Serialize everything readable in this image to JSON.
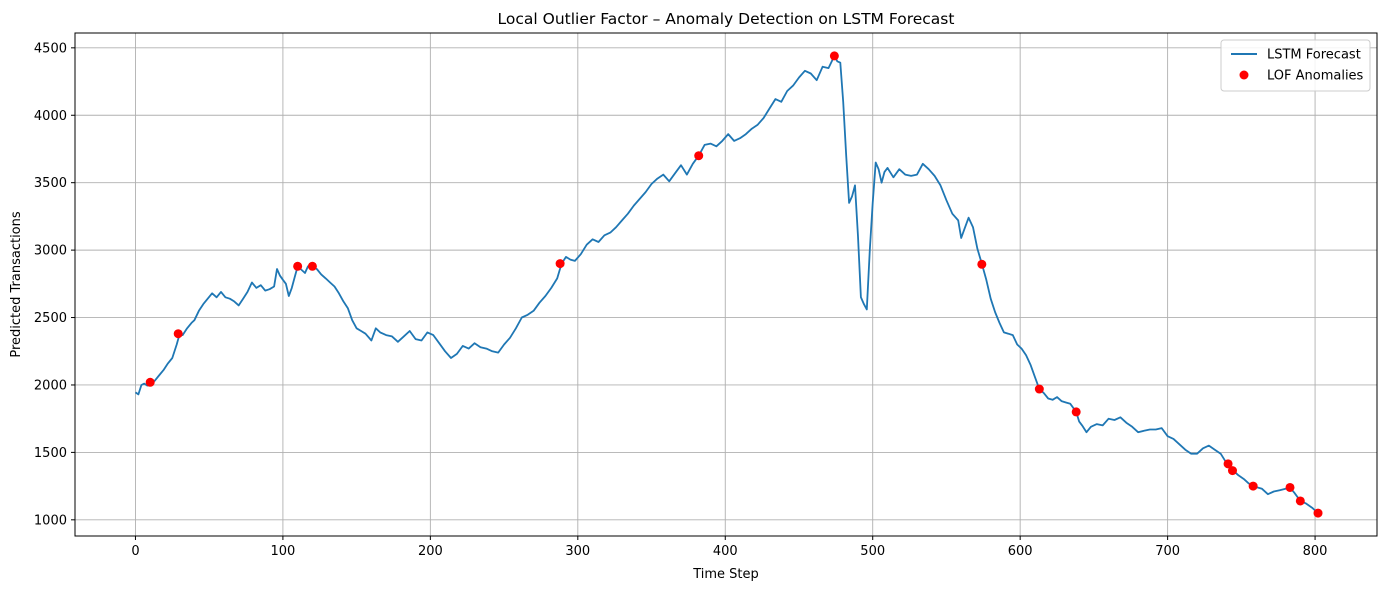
{
  "chart_data": {
    "type": "line",
    "title": "Local Outlier Factor – Anomaly Detection on LSTM Forecast",
    "xlabel": "Time Step",
    "ylabel": "Predicted Transactions",
    "xlim": [
      -41,
      842
    ],
    "ylim": [
      880,
      4610
    ],
    "xticks": [
      0,
      100,
      200,
      300,
      400,
      500,
      600,
      700,
      800
    ],
    "yticks": [
      1000,
      1500,
      2000,
      2500,
      3000,
      3500,
      4000,
      4500
    ],
    "grid": true,
    "legend_position": "top-right",
    "colors": {
      "line": "#1f77b4",
      "anomaly": "#ff0000",
      "grid": "#b0b0b0"
    },
    "series": [
      {
        "name": "LSTM Forecast",
        "kind": "line",
        "points": [
          [
            0,
            1945
          ],
          [
            2,
            1930
          ],
          [
            4,
            2000
          ],
          [
            6,
            2010
          ],
          [
            8,
            1995
          ],
          [
            10,
            2015
          ],
          [
            13,
            2030
          ],
          [
            16,
            2070
          ],
          [
            19,
            2110
          ],
          [
            22,
            2160
          ],
          [
            25,
            2200
          ],
          [
            28,
            2300
          ],
          [
            30,
            2380
          ],
          [
            32,
            2370
          ],
          [
            35,
            2420
          ],
          [
            38,
            2460
          ],
          [
            40,
            2480
          ],
          [
            43,
            2550
          ],
          [
            46,
            2600
          ],
          [
            49,
            2640
          ],
          [
            52,
            2680
          ],
          [
            55,
            2650
          ],
          [
            58,
            2690
          ],
          [
            61,
            2650
          ],
          [
            64,
            2640
          ],
          [
            67,
            2620
          ],
          [
            70,
            2590
          ],
          [
            73,
            2640
          ],
          [
            76,
            2690
          ],
          [
            79,
            2760
          ],
          [
            82,
            2720
          ],
          [
            85,
            2740
          ],
          [
            88,
            2700
          ],
          [
            91,
            2710
          ],
          [
            94,
            2730
          ],
          [
            96,
            2860
          ],
          [
            98,
            2810
          ],
          [
            100,
            2780
          ],
          [
            102,
            2750
          ],
          [
            104,
            2660
          ],
          [
            106,
            2720
          ],
          [
            108,
            2800
          ],
          [
            110,
            2880
          ],
          [
            112,
            2860
          ],
          [
            115,
            2830
          ],
          [
            117,
            2880
          ],
          [
            120,
            2880
          ],
          [
            123,
            2860
          ],
          [
            126,
            2820
          ],
          [
            129,
            2790
          ],
          [
            132,
            2760
          ],
          [
            135,
            2730
          ],
          [
            138,
            2680
          ],
          [
            141,
            2620
          ],
          [
            144,
            2570
          ],
          [
            147,
            2480
          ],
          [
            150,
            2420
          ],
          [
            153,
            2400
          ],
          [
            156,
            2380
          ],
          [
            160,
            2330
          ],
          [
            163,
            2420
          ],
          [
            166,
            2390
          ],
          [
            170,
            2370
          ],
          [
            174,
            2360
          ],
          [
            178,
            2320
          ],
          [
            182,
            2360
          ],
          [
            186,
            2400
          ],
          [
            190,
            2340
          ],
          [
            194,
            2330
          ],
          [
            198,
            2390
          ],
          [
            202,
            2370
          ],
          [
            206,
            2310
          ],
          [
            210,
            2250
          ],
          [
            214,
            2200
          ],
          [
            218,
            2230
          ],
          [
            222,
            2290
          ],
          [
            226,
            2270
          ],
          [
            230,
            2310
          ],
          [
            234,
            2280
          ],
          [
            238,
            2270
          ],
          [
            242,
            2250
          ],
          [
            246,
            2240
          ],
          [
            250,
            2300
          ],
          [
            254,
            2350
          ],
          [
            258,
            2420
          ],
          [
            262,
            2500
          ],
          [
            266,
            2520
          ],
          [
            270,
            2550
          ],
          [
            274,
            2610
          ],
          [
            278,
            2660
          ],
          [
            282,
            2720
          ],
          [
            286,
            2790
          ],
          [
            289,
            2900
          ],
          [
            292,
            2950
          ],
          [
            295,
            2930
          ],
          [
            298,
            2920
          ],
          [
            302,
            2970
          ],
          [
            306,
            3040
          ],
          [
            310,
            3080
          ],
          [
            314,
            3060
          ],
          [
            318,
            3110
          ],
          [
            322,
            3130
          ],
          [
            326,
            3170
          ],
          [
            330,
            3220
          ],
          [
            334,
            3270
          ],
          [
            338,
            3330
          ],
          [
            342,
            3380
          ],
          [
            346,
            3430
          ],
          [
            350,
            3490
          ],
          [
            354,
            3530
          ],
          [
            358,
            3560
          ],
          [
            362,
            3510
          ],
          [
            366,
            3570
          ],
          [
            370,
            3630
          ],
          [
            374,
            3560
          ],
          [
            378,
            3640
          ],
          [
            382,
            3700
          ],
          [
            386,
            3780
          ],
          [
            390,
            3790
          ],
          [
            394,
            3770
          ],
          [
            398,
            3810
          ],
          [
            402,
            3860
          ],
          [
            406,
            3810
          ],
          [
            410,
            3830
          ],
          [
            414,
            3860
          ],
          [
            418,
            3900
          ],
          [
            422,
            3930
          ],
          [
            426,
            3980
          ],
          [
            430,
            4050
          ],
          [
            434,
            4120
          ],
          [
            438,
            4100
          ],
          [
            442,
            4180
          ],
          [
            446,
            4220
          ],
          [
            450,
            4280
          ],
          [
            454,
            4330
          ],
          [
            458,
            4310
          ],
          [
            462,
            4260
          ],
          [
            466,
            4360
          ],
          [
            470,
            4350
          ],
          [
            474,
            4440
          ],
          [
            476,
            4400
          ],
          [
            478,
            4390
          ],
          [
            480,
            4100
          ],
          [
            482,
            3700
          ],
          [
            484,
            3350
          ],
          [
            486,
            3400
          ],
          [
            488,
            3480
          ],
          [
            490,
            3100
          ],
          [
            492,
            2650
          ],
          [
            494,
            2600
          ],
          [
            496,
            2560
          ],
          [
            498,
            3000
          ],
          [
            500,
            3350
          ],
          [
            502,
            3650
          ],
          [
            504,
            3600
          ],
          [
            506,
            3500
          ],
          [
            508,
            3580
          ],
          [
            510,
            3610
          ],
          [
            514,
            3540
          ],
          [
            518,
            3600
          ],
          [
            522,
            3560
          ],
          [
            526,
            3550
          ],
          [
            530,
            3560
          ],
          [
            534,
            3640
          ],
          [
            538,
            3600
          ],
          [
            542,
            3550
          ],
          [
            546,
            3480
          ],
          [
            550,
            3370
          ],
          [
            554,
            3270
          ],
          [
            558,
            3220
          ],
          [
            560,
            3090
          ],
          [
            562,
            3150
          ],
          [
            565,
            3240
          ],
          [
            568,
            3170
          ],
          [
            571,
            3010
          ],
          [
            574,
            2900
          ],
          [
            577,
            2780
          ],
          [
            580,
            2640
          ],
          [
            583,
            2540
          ],
          [
            586,
            2460
          ],
          [
            589,
            2390
          ],
          [
            592,
            2380
          ],
          [
            595,
            2370
          ],
          [
            598,
            2300
          ],
          [
            601,
            2270
          ],
          [
            604,
            2220
          ],
          [
            607,
            2150
          ],
          [
            610,
            2060
          ],
          [
            613,
            1970
          ],
          [
            616,
            1940
          ],
          [
            619,
            1900
          ],
          [
            622,
            1890
          ],
          [
            625,
            1910
          ],
          [
            628,
            1880
          ],
          [
            631,
            1870
          ],
          [
            634,
            1860
          ],
          [
            638,
            1800
          ],
          [
            640,
            1730
          ],
          [
            642,
            1700
          ],
          [
            645,
            1650
          ],
          [
            648,
            1690
          ],
          [
            652,
            1710
          ],
          [
            656,
            1700
          ],
          [
            660,
            1750
          ],
          [
            664,
            1740
          ],
          [
            668,
            1760
          ],
          [
            672,
            1720
          ],
          [
            676,
            1690
          ],
          [
            680,
            1650
          ],
          [
            684,
            1660
          ],
          [
            688,
            1670
          ],
          [
            692,
            1670
          ],
          [
            696,
            1680
          ],
          [
            700,
            1620
          ],
          [
            704,
            1600
          ],
          [
            708,
            1560
          ],
          [
            712,
            1520
          ],
          [
            716,
            1490
          ],
          [
            720,
            1490
          ],
          [
            724,
            1530
          ],
          [
            728,
            1550
          ],
          [
            732,
            1520
          ],
          [
            736,
            1490
          ],
          [
            740,
            1420
          ],
          [
            744,
            1370
          ],
          [
            748,
            1330
          ],
          [
            752,
            1300
          ],
          [
            755,
            1270
          ],
          [
            758,
            1250
          ],
          [
            761,
            1240
          ],
          [
            764,
            1230
          ],
          [
            768,
            1190
          ],
          [
            772,
            1210
          ],
          [
            776,
            1220
          ],
          [
            780,
            1230
          ],
          [
            783,
            1240
          ],
          [
            786,
            1200
          ],
          [
            790,
            1140
          ],
          [
            794,
            1120
          ],
          [
            798,
            1090
          ],
          [
            802,
            1050
          ]
        ]
      },
      {
        "name": "LOF Anomalies",
        "kind": "scatter",
        "points": [
          [
            10,
            2020
          ],
          [
            29,
            2380
          ],
          [
            110,
            2880
          ],
          [
            120,
            2880
          ],
          [
            288,
            2900
          ],
          [
            382,
            3700
          ],
          [
            474,
            4440
          ],
          [
            574,
            2895
          ],
          [
            613,
            1970
          ],
          [
            638,
            1800
          ],
          [
            741,
            1415
          ],
          [
            744,
            1365
          ],
          [
            758,
            1250
          ],
          [
            783,
            1240
          ],
          [
            790,
            1140
          ],
          [
            802,
            1050
          ]
        ]
      }
    ]
  }
}
